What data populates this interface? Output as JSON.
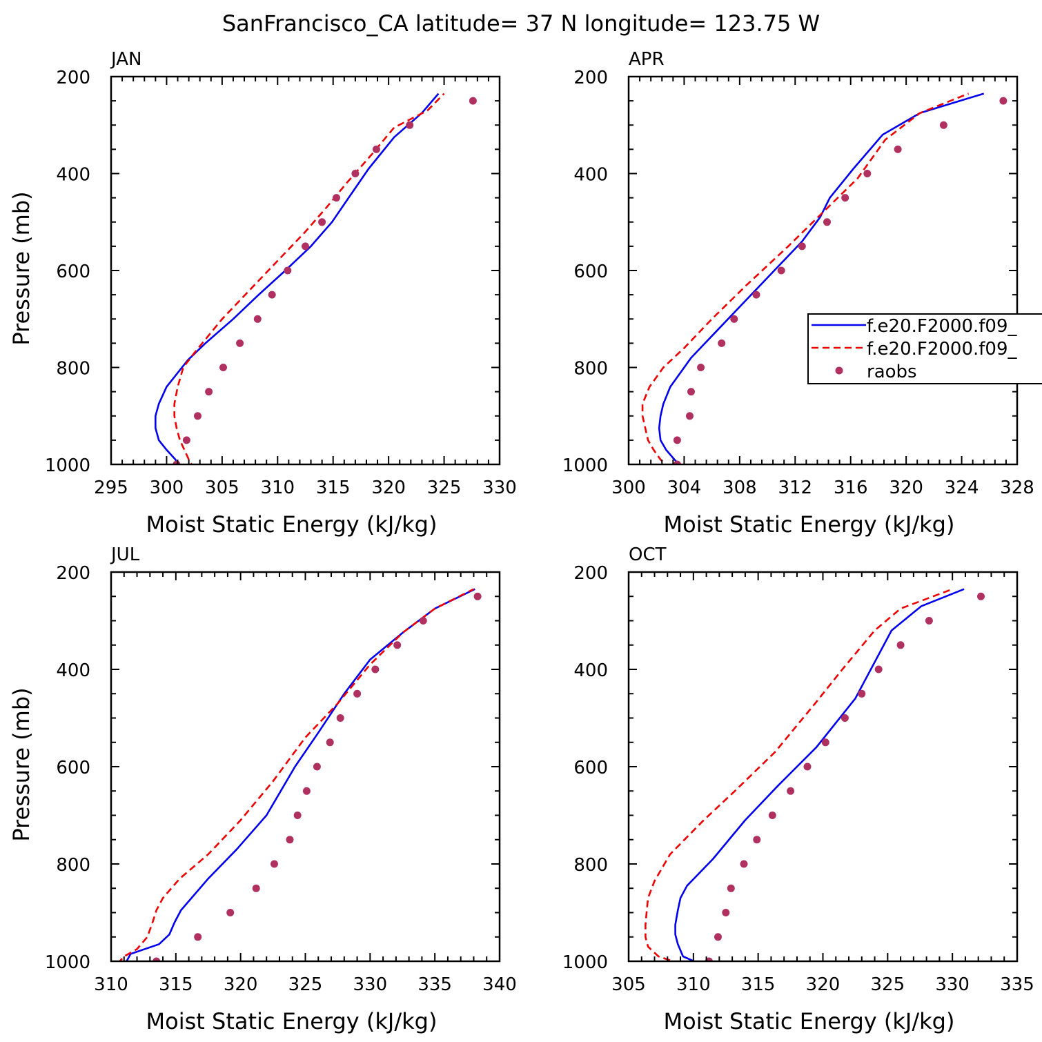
{
  "title": "SanFrancisco_CA  latitude= 37 N longitude= 123.75 W",
  "legend": {
    "entries": [
      {
        "label": "f.e20.F2000.f09_",
        "color": "#0000ee",
        "style": "solid"
      },
      {
        "label": "f.e20.F2000.f09_",
        "color": "#ee0000",
        "style": "dashed"
      },
      {
        "label": "raobs",
        "color": "#b03060",
        "style": "dot"
      }
    ]
  },
  "chart_data": [
    {
      "type": "line",
      "panel_label": "JAN",
      "xlabel": "Moist Static Energy (kJ/kg)",
      "ylabel": "Pressure (mb)",
      "xlim": [
        295,
        330
      ],
      "ylim": [
        1000,
        200
      ],
      "xticks": [
        "295",
        "300",
        "305",
        "310",
        "315",
        "320",
        "325",
        "330"
      ],
      "yticks": [
        "200",
        "400",
        "600",
        "800",
        "1000"
      ],
      "series": [
        {
          "color": "#0000ee",
          "style": "solid",
          "x": [
            301.2,
            300.8,
            300.0,
            299.3,
            299.0,
            299.0,
            299.3,
            300.0,
            301.9,
            303.5,
            306.0,
            308.3,
            310.7,
            313.0,
            314.9,
            316.4,
            318.2,
            320.5,
            323.0,
            324.5
          ],
          "y": [
            1010,
            990,
            970,
            950,
            925,
            900,
            875,
            840,
            785,
            750,
            700,
            650,
            600,
            550,
            500,
            450,
            390,
            325,
            275,
            235
          ]
        },
        {
          "color": "#ee0000",
          "style": "dashed",
          "x": [
            302.5,
            302.0,
            301.6,
            301.2,
            300.9,
            300.7,
            300.7,
            301.0,
            301.5,
            302.5,
            305.0,
            307.5,
            310.0,
            312.5,
            314.4,
            316.2,
            318.5,
            320.5,
            323.5,
            325.0
          ],
          "y": [
            1010,
            990,
            970,
            950,
            925,
            900,
            875,
            840,
            800,
            770,
            700,
            640,
            580,
            520,
            470,
            420,
            360,
            305,
            270,
            235
          ]
        },
        {
          "color": "#b03060",
          "style": "dot",
          "x": [
            300.9,
            301.8,
            302.8,
            303.8,
            305.1,
            306.6,
            308.2,
            309.5,
            310.9,
            312.5,
            314.0,
            315.3,
            317.0,
            318.9,
            321.9,
            327.6
          ],
          "y": [
            1000,
            950,
            900,
            850,
            800,
            750,
            700,
            650,
            600,
            550,
            500,
            450,
            400,
            350,
            300,
            250
          ]
        }
      ]
    },
    {
      "type": "line",
      "panel_label": "APR",
      "xlabel": "Moist Static Energy (kJ/kg)",
      "ylabel": "",
      "xlim": [
        300,
        328
      ],
      "ylim": [
        1000,
        200
      ],
      "xticks": [
        "300",
        "304",
        "308",
        "312",
        "316",
        "320",
        "324",
        "328"
      ],
      "yticks": [
        "200",
        "400",
        "600",
        "800",
        "1000"
      ],
      "series": [
        {
          "color": "#0000ee",
          "style": "solid",
          "x": [
            304.0,
            303.3,
            302.7,
            302.3,
            302.2,
            302.3,
            302.5,
            303.0,
            304.5,
            306.5,
            308.5,
            310.5,
            312.5,
            313.8,
            314.5,
            316.2,
            318.3,
            321.0,
            325.6
          ],
          "y": [
            1010,
            990,
            970,
            950,
            925,
            900,
            875,
            840,
            780,
            720,
            660,
            600,
            540,
            490,
            450,
            390,
            320,
            275,
            235
          ]
        },
        {
          "color": "#ee0000",
          "style": "dashed",
          "x": [
            303.0,
            302.3,
            301.8,
            301.4,
            301.2,
            301.0,
            301.0,
            301.5,
            302.5,
            304.0,
            306.0,
            308.5,
            311.5,
            314.0,
            316.5,
            318.5,
            321.0,
            324.5
          ],
          "y": [
            1010,
            990,
            970,
            950,
            925,
            900,
            875,
            840,
            800,
            760,
            700,
            630,
            550,
            480,
            410,
            330,
            275,
            235
          ]
        },
        {
          "color": "#b03060",
          "style": "dot",
          "x": [
            303.5,
            303.5,
            304.4,
            304.5,
            305.2,
            306.7,
            307.6,
            309.2,
            311.0,
            312.5,
            314.3,
            315.6,
            317.2,
            319.4,
            322.7,
            327.0
          ],
          "y": [
            1000,
            950,
            900,
            850,
            800,
            750,
            700,
            650,
            600,
            550,
            500,
            450,
            400,
            350,
            300,
            250
          ]
        }
      ]
    },
    {
      "type": "line",
      "panel_label": "JUL",
      "xlabel": "Moist Static Energy (kJ/kg)",
      "ylabel": "Pressure (mb)",
      "xlim": [
        310,
        340
      ],
      "ylim": [
        1000,
        200
      ],
      "xticks": [
        "310",
        "315",
        "320",
        "325",
        "330",
        "335",
        "340"
      ],
      "yticks": [
        "200",
        "400",
        "600",
        "800",
        "1000"
      ],
      "series": [
        {
          "color": "#0000ee",
          "style": "solid",
          "x": [
            310.8,
            311.2,
            311.5,
            313.7,
            314.5,
            314.9,
            315.4,
            317.5,
            319.7,
            322.0,
            324.2,
            326.0,
            328.0,
            330.0,
            332.5,
            335.0,
            338.1
          ],
          "y": [
            1007,
            1000,
            985,
            965,
            945,
            920,
            895,
            830,
            770,
            700,
            600,
            530,
            450,
            380,
            325,
            275,
            235
          ]
        },
        {
          "color": "#ee0000",
          "style": "dashed",
          "x": [
            310.5,
            311.0,
            312.0,
            312.8,
            313.2,
            313.5,
            314.0,
            315.3,
            317.5,
            320.0,
            322.5,
            325.0,
            327.5,
            330.0,
            332.5,
            335.0,
            338.0
          ],
          "y": [
            1005,
            990,
            975,
            950,
            920,
            895,
            870,
            830,
            780,
            710,
            630,
            540,
            470,
            390,
            325,
            275,
            235
          ]
        },
        {
          "color": "#b03060",
          "style": "dot",
          "x": [
            313.5,
            316.7,
            319.2,
            321.2,
            322.6,
            323.8,
            324.4,
            325.1,
            325.9,
            326.9,
            327.7,
            329.0,
            330.4,
            332.1,
            334.1,
            338.3
          ],
          "y": [
            1000,
            950,
            900,
            850,
            800,
            750,
            700,
            650,
            600,
            550,
            500,
            450,
            400,
            350,
            300,
            250
          ]
        }
      ]
    },
    {
      "type": "line",
      "panel_label": "OCT",
      "xlabel": "Moist Static Energy (kJ/kg)",
      "ylabel": "",
      "xlim": [
        305,
        335
      ],
      "ylim": [
        1000,
        200
      ],
      "xticks": [
        "305",
        "310",
        "315",
        "320",
        "325",
        "330",
        "335"
      ],
      "yticks": [
        "200",
        "400",
        "600",
        "800",
        "1000"
      ],
      "series": [
        {
          "color": "#0000ee",
          "style": "solid",
          "x": [
            310.9,
            309.2,
            308.8,
            308.6,
            308.6,
            308.8,
            309.0,
            309.5,
            311.5,
            314.0,
            316.5,
            319.5,
            322.5,
            325.3,
            327.6,
            330.9
          ],
          "y": [
            1010,
            990,
            965,
            945,
            925,
            895,
            870,
            845,
            790,
            710,
            640,
            560,
            460,
            320,
            270,
            235
          ]
        },
        {
          "color": "#ee0000",
          "style": "dashed",
          "x": [
            309.0,
            307.3,
            306.5,
            306.3,
            306.3,
            306.4,
            306.5,
            307.0,
            308.2,
            310.8,
            313.2,
            316.3,
            319.4,
            321.5,
            324.0,
            326.0,
            330.0
          ],
          "y": [
            1005,
            990,
            970,
            950,
            925,
            895,
            870,
            835,
            780,
            710,
            650,
            570,
            470,
            400,
            320,
            275,
            235
          ]
        },
        {
          "color": "#b03060",
          "style": "dot",
          "x": [
            311.2,
            311.9,
            312.5,
            312.9,
            313.9,
            314.9,
            316.1,
            317.5,
            318.8,
            320.2,
            321.7,
            323.0,
            324.3,
            326.0,
            328.2,
            332.2
          ],
          "y": [
            1000,
            950,
            900,
            850,
            800,
            750,
            700,
            650,
            600,
            550,
            500,
            450,
            400,
            350,
            300,
            250
          ]
        }
      ]
    }
  ]
}
